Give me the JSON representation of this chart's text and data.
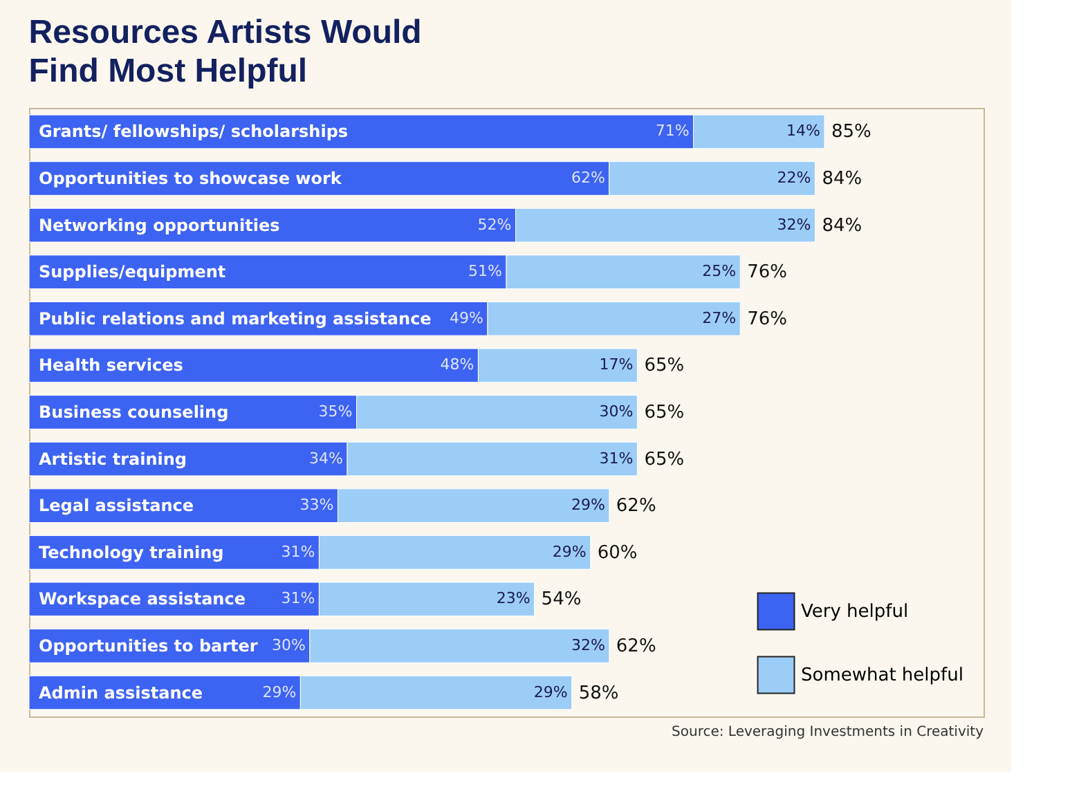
{
  "chart_data": {
    "type": "bar",
    "orientation": "horizontal",
    "stacked": true,
    "title": "Resources Artists Would Find Most Helpful",
    "categories": [
      "Grants/ fellowships/ scholarships",
      "Opportunities to showcase work",
      "Networking opportunities",
      "Supplies/equipment",
      "Public relations and marketing assistance",
      "Health services",
      "Business counseling",
      "Artistic training",
      "Legal assistance",
      "Technology training",
      "Workspace assistance",
      "Opportunities to barter",
      "Admin assistance"
    ],
    "series": [
      {
        "name": "Very helpful",
        "color": "#3d63f2",
        "values": [
          71,
          62,
          52,
          51,
          49,
          48,
          35,
          34,
          33,
          31,
          31,
          30,
          29
        ],
        "value_labels": [
          "71%",
          "62%",
          "52%",
          "51%",
          "49%",
          "48%",
          "35%",
          "34%",
          "33%",
          "31%",
          "31%",
          "30%",
          "29%"
        ]
      },
      {
        "name": "Somewhat helpful",
        "color": "#9ccdf7",
        "values": [
          14,
          22,
          32,
          25,
          27,
          17,
          30,
          31,
          29,
          29,
          23,
          32,
          29
        ],
        "value_labels": [
          "14%",
          "22%",
          "32%",
          "25%",
          "27%",
          "17%",
          "30%",
          "31%",
          "29%",
          "29%",
          "23%",
          "32%",
          "29%"
        ]
      }
    ],
    "totals": [
      "85%",
      "84%",
      "84%",
      "76%",
      "76%",
      "65%",
      "65%",
      "65%",
      "62%",
      "60%",
      "54%",
      "62%",
      "58%"
    ],
    "legend": "bottom right",
    "annotations": [
      "Source: Leveraging Investments in Creativity"
    ]
  }
}
